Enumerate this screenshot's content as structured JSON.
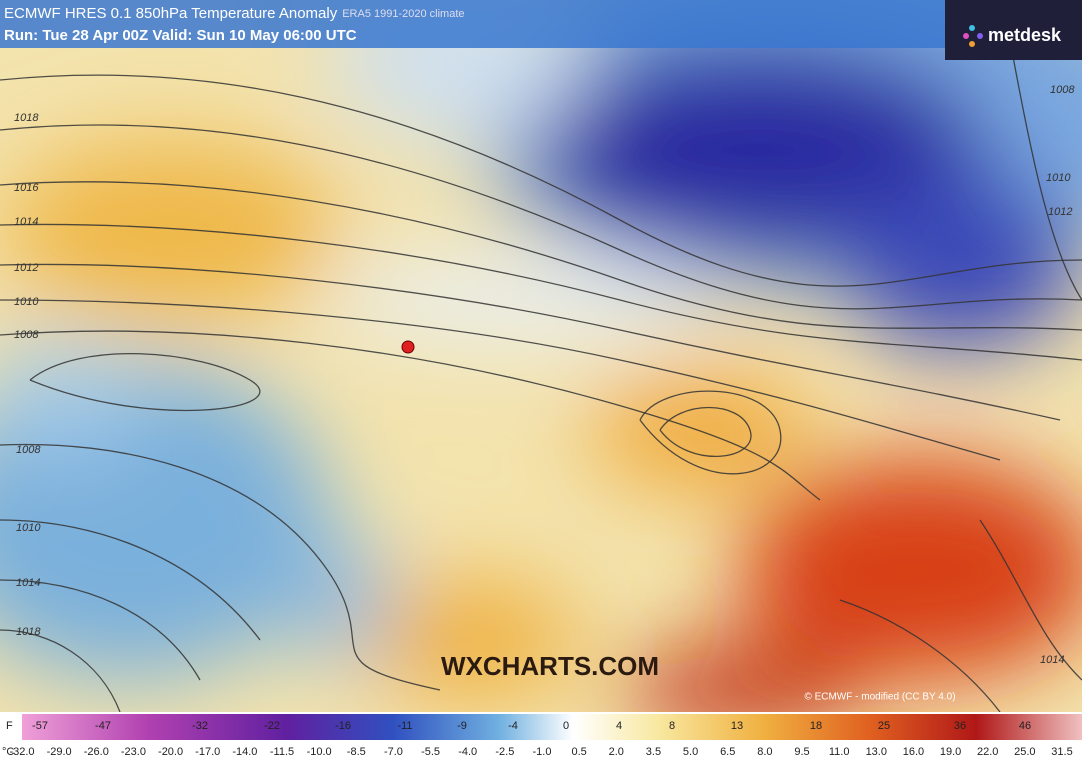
{
  "header": {
    "title": "ECMWF HRES 0.1 850hPa Temperature Anomaly",
    "climate": "ERA5 1991-2020 climate",
    "run": "Run: Tue 28 Apr 00Z Valid: Sun 10 May 06:00 UTC",
    "logo": "metdesk"
  },
  "map": {
    "watermark": "WXCHARTS.COM",
    "credit": "© ECMWF - modified (CC BY 4.0)",
    "isobar_labels": [
      "1018",
      "1016",
      "1014",
      "1012",
      "1010",
      "1008",
      "1008",
      "1010",
      "1014",
      "1018",
      "1008",
      "1010",
      "1012",
      "1014"
    ]
  },
  "colorbar": {
    "f_unit": "F",
    "f_labels": [
      "-57",
      "-47",
      "-32",
      "-22",
      "-16",
      "-11",
      "-9",
      "-4",
      "0",
      "4",
      "8",
      "13",
      "18",
      "25",
      "36",
      "46"
    ],
    "c_unit": "°C",
    "c_labels": [
      "-32.0",
      "-29.0",
      "-26.0",
      "-23.0",
      "-20.0",
      "-17.0",
      "-14.0",
      "-11.5",
      "-10.0",
      "-8.5",
      "-7.0",
      "-5.5",
      "-4.0",
      "-2.5",
      "-1.0",
      "0.5",
      "2.0",
      "3.5",
      "5.0",
      "6.5",
      "8.0",
      "9.5",
      "11.0",
      "13.0",
      "16.0",
      "19.0",
      "22.0",
      "25.0",
      "31.5"
    ]
  }
}
